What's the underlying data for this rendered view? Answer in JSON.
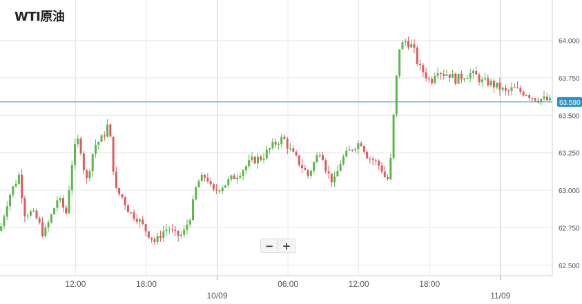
{
  "title": "WTI原油",
  "zoom": {
    "minus": "−",
    "plus": "+"
  },
  "colors": {
    "up": "#59b848",
    "down": "#dd5a5f",
    "current_line": "#2f93c8",
    "current_label_bg": "#2f93c8",
    "grid": "#e6e6e6",
    "day_sep": "#cccccc"
  },
  "chart_data": {
    "type": "candlestick",
    "title": "WTI原油",
    "ylim": [
      62.43,
      64.27
    ],
    "y_ticks": [
      "64.000",
      "63.750",
      "63.500",
      "63.250",
      "63.000",
      "62.750",
      "62.500"
    ],
    "x_ticks": [
      {
        "label": "12:00",
        "hour": 12
      },
      {
        "label": "18:00",
        "hour": 18
      },
      {
        "label": "06:00",
        "hour": 30
      },
      {
        "label": "12:00",
        "hour": 36
      },
      {
        "label": "18:00",
        "hour": 42
      }
    ],
    "date_labels": [
      {
        "label": "10/09",
        "hour": 24
      },
      {
        "label": "11/09",
        "hour": 48
      }
    ],
    "x_range_hours": [
      5.6,
      52.4
    ],
    "current_price": "63.590",
    "current_value": 63.59,
    "anchors": [
      [
        5.6,
        62.73
      ],
      [
        6.3,
        62.95
      ],
      [
        7.2,
        63.1
      ],
      [
        7.7,
        62.85
      ],
      [
        8.3,
        62.85
      ],
      [
        8.8,
        62.8
      ],
      [
        9.3,
        62.7
      ],
      [
        9.9,
        62.82
      ],
      [
        10.5,
        62.95
      ],
      [
        11.2,
        62.85
      ],
      [
        11.8,
        63.25
      ],
      [
        12.3,
        63.35
      ],
      [
        12.9,
        63.05
      ],
      [
        13.6,
        63.3
      ],
      [
        14.3,
        63.35
      ],
      [
        14.8,
        63.45
      ],
      [
        15.4,
        63.0
      ],
      [
        16.0,
        62.95
      ],
      [
        16.6,
        62.85
      ],
      [
        17.2,
        62.82
      ],
      [
        17.8,
        62.75
      ],
      [
        18.3,
        62.7
      ],
      [
        18.8,
        62.65
      ],
      [
        19.3,
        62.72
      ],
      [
        19.9,
        62.75
      ],
      [
        20.4,
        62.7
      ],
      [
        21.1,
        62.7
      ],
      [
        21.8,
        62.85
      ],
      [
        22.3,
        63.05
      ],
      [
        23.1,
        63.1
      ],
      [
        23.6,
        62.98
      ],
      [
        24.2,
        63.02
      ],
      [
        24.8,
        63.05
      ],
      [
        25.6,
        63.1
      ],
      [
        26.3,
        63.15
      ],
      [
        27.0,
        63.2
      ],
      [
        27.8,
        63.22
      ],
      [
        28.5,
        63.28
      ],
      [
        29.0,
        63.32
      ],
      [
        29.6,
        63.35
      ],
      [
        30.3,
        63.25
      ],
      [
        31.0,
        63.18
      ],
      [
        31.7,
        63.1
      ],
      [
        32.3,
        63.2
      ],
      [
        32.8,
        63.28
      ],
      [
        33.3,
        63.12
      ],
      [
        33.9,
        63.05
      ],
      [
        34.5,
        63.2
      ],
      [
        35.1,
        63.25
      ],
      [
        35.6,
        63.3
      ],
      [
        36.2,
        63.32
      ],
      [
        36.8,
        63.22
      ],
      [
        37.3,
        63.2
      ],
      [
        37.9,
        63.15
      ],
      [
        38.4,
        63.05
      ],
      [
        38.7,
        63.2
      ],
      [
        39.0,
        63.55
      ],
      [
        39.4,
        63.95
      ],
      [
        40.0,
        64.0
      ],
      [
        40.6,
        63.95
      ],
      [
        41.1,
        63.82
      ],
      [
        41.6,
        63.78
      ],
      [
        42.1,
        63.72
      ],
      [
        42.6,
        63.82
      ],
      [
        43.1,
        63.78
      ],
      [
        43.6,
        63.78
      ],
      [
        44.2,
        63.74
      ],
      [
        44.8,
        63.76
      ],
      [
        45.4,
        63.78
      ],
      [
        46.0,
        63.76
      ],
      [
        46.5,
        63.72
      ],
      [
        47.0,
        63.72
      ],
      [
        47.5,
        63.7
      ],
      [
        48.0,
        63.68
      ],
      [
        48.5,
        63.65
      ],
      [
        49.1,
        63.68
      ],
      [
        49.6,
        63.66
      ],
      [
        50.2,
        63.65
      ],
      [
        50.8,
        63.62
      ],
      [
        51.4,
        63.61
      ],
      [
        52.0,
        63.6
      ],
      [
        52.2,
        63.59
      ]
    ]
  }
}
